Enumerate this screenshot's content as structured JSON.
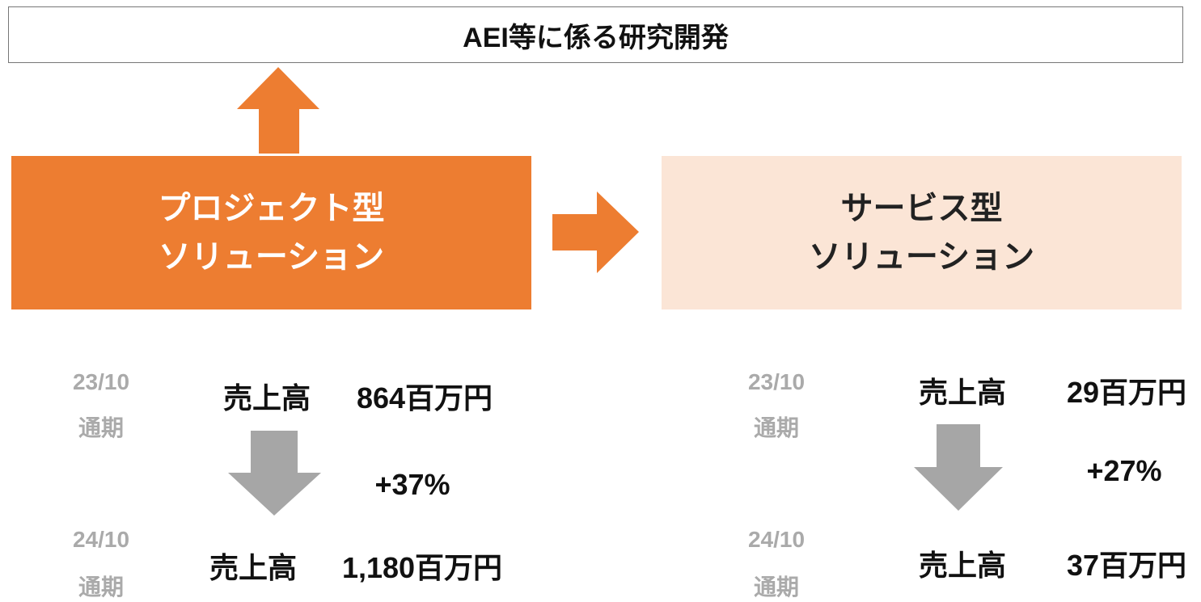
{
  "header": {
    "title": "AEI等に係る研究開発"
  },
  "boxes": [
    {
      "lines": [
        "プロジェクト型",
        "ソリューション"
      ]
    },
    {
      "lines": [
        "サービス型",
        "ソリューション"
      ]
    }
  ],
  "panels": [
    {
      "before": {
        "period": [
          "23/10",
          "通期"
        ],
        "label": "売上高",
        "amount": "864百万円"
      },
      "growth": "+37%",
      "after": {
        "period": [
          "24/10",
          "通期"
        ],
        "label": "売上高",
        "amount": "1,180百万円"
      }
    },
    {
      "before": {
        "period": [
          "23/10",
          "通期"
        ],
        "label": "売上高",
        "amount": "29百万円"
      },
      "growth": "+27%",
      "after": {
        "period": [
          "24/10",
          "通期"
        ],
        "label": "売上高",
        "amount": "37百万円"
      }
    }
  ]
}
